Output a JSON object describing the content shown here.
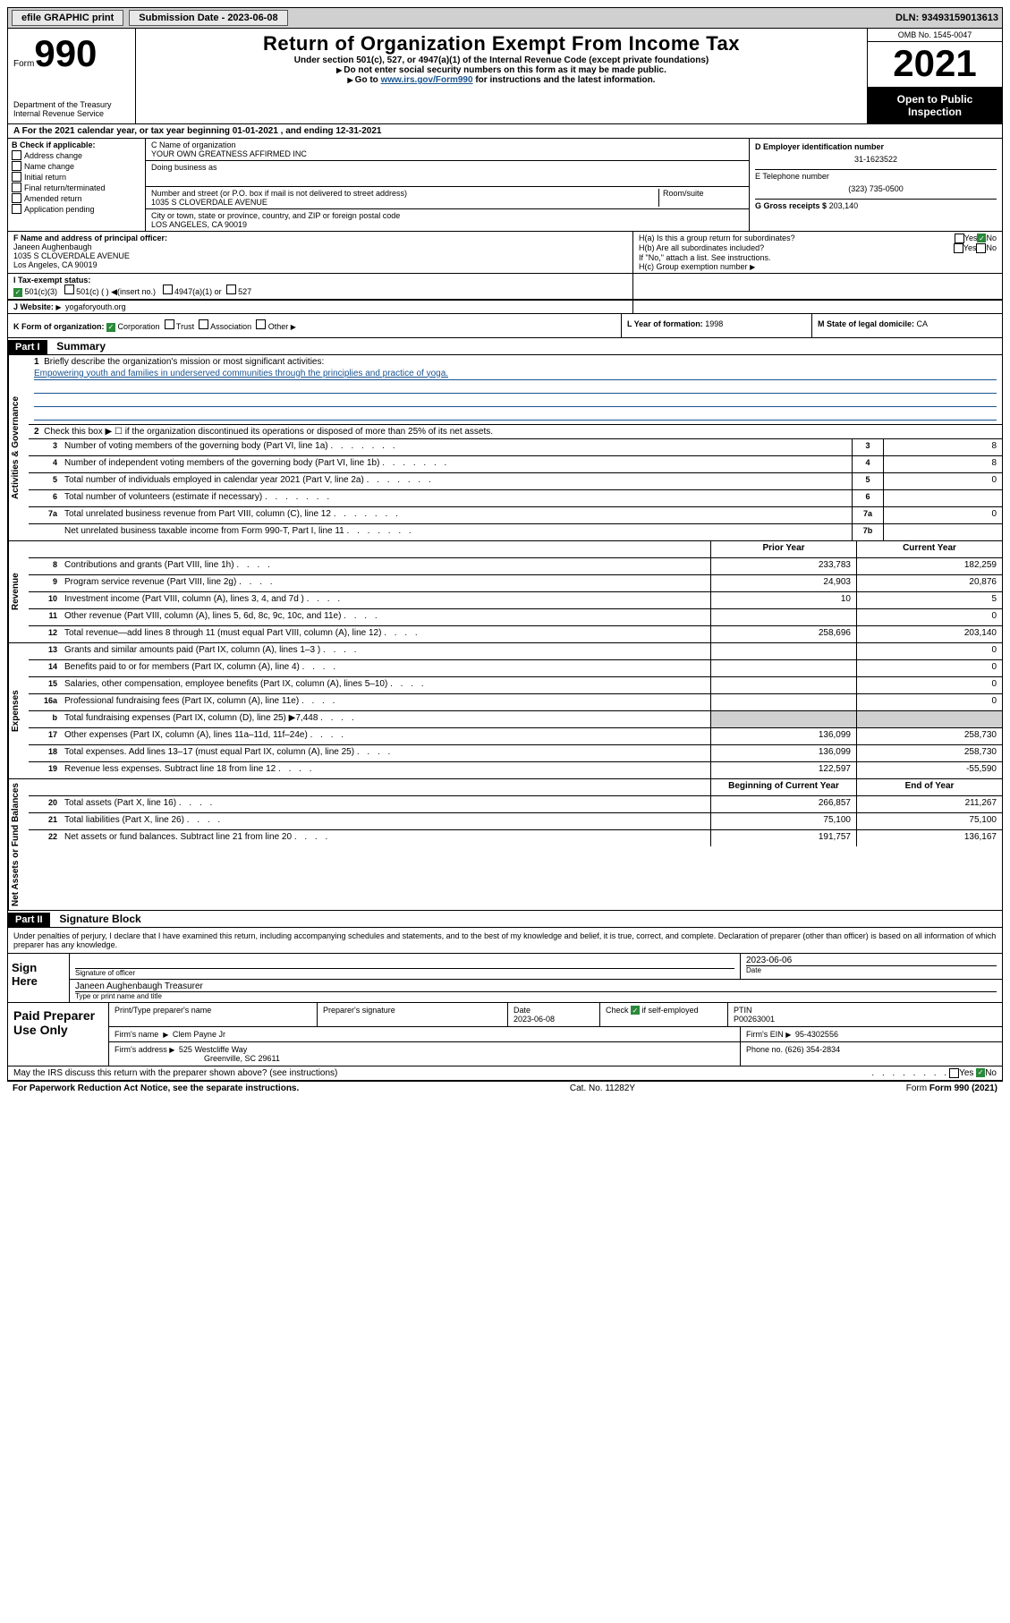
{
  "topbar": {
    "efile": "efile GRAPHIC print",
    "submission_label": "Submission Date - 2023-06-08",
    "dln": "DLN: 93493159013613"
  },
  "header": {
    "form_prefix": "Form",
    "form_number": "990",
    "dept": "Department of the Treasury",
    "irs": "Internal Revenue Service",
    "title": "Return of Organization Exempt From Income Tax",
    "sub1": "Under section 501(c), 527, or 4947(a)(1) of the Internal Revenue Code (except private foundations)",
    "sub2": "Do not enter social security numbers on this form as it may be made public.",
    "sub3_a": "Go to ",
    "sub3_link": "www.irs.gov/Form990",
    "sub3_b": " for instructions and the latest information.",
    "omb": "OMB No. 1545-0047",
    "year": "2021",
    "open": "Open to Public Inspection"
  },
  "section_a": "A  For the 2021 calendar year, or tax year beginning 01-01-2021   , and ending 12-31-2021",
  "section_b": {
    "label": "B Check if applicable:",
    "items": [
      "Address change",
      "Name change",
      "Initial return",
      "Final return/terminated",
      "Amended return",
      "Application pending"
    ]
  },
  "section_c": {
    "name_label": "C Name of organization",
    "name": "YOUR OWN GREATNESS AFFIRMED INC",
    "dba_label": "Doing business as",
    "street_label": "Number and street (or P.O. box if mail is not delivered to street address)",
    "room_label": "Room/suite",
    "street": "1035 S CLOVERDALE AVENUE",
    "city_label": "City or town, state or province, country, and ZIP or foreign postal code",
    "city": "LOS ANGELES, CA  90019"
  },
  "section_d": {
    "ein_label": "D Employer identification number",
    "ein": "31-1623522",
    "phone_label": "E Telephone number",
    "phone": "(323) 735-0500",
    "gross_label": "G Gross receipts $",
    "gross": "203,140"
  },
  "section_f": {
    "label": "F  Name and address of principal officer:",
    "name": "Janeen Aughenbaugh",
    "street": "1035 S CLOVERDALE AVENUE",
    "city": "Los Angeles, CA  90019"
  },
  "section_h": {
    "ha_label": "H(a)  Is this a group return for subordinates?",
    "hb_label": "H(b)  Are all subordinates included?",
    "hb_note": "If \"No,\" attach a list. See instructions.",
    "hc_label": "H(c)  Group exemption number",
    "yes": "Yes",
    "no": "No"
  },
  "section_i": {
    "label": "I    Tax-exempt status:",
    "c3": "501(c)(3)",
    "c": "501(c) (  )",
    "insert": "(insert no.)",
    "a1": "4947(a)(1) or",
    "s527": "527"
  },
  "section_j": {
    "label": "J   Website:",
    "value": "yogaforyouth.org"
  },
  "section_k": {
    "label": "K Form of organization:",
    "corp": "Corporation",
    "trust": "Trust",
    "assoc": "Association",
    "other": "Other"
  },
  "section_l": {
    "label": "L Year of formation:",
    "value": "1998"
  },
  "section_m": {
    "label": "M State of legal domicile:",
    "value": "CA"
  },
  "part1": {
    "bar": "Part I",
    "title": "Summary",
    "line1_label": "Briefly describe the organization's mission or most significant activities:",
    "line1_text": "Empowering youth and families in underserved communities through the principlies and practice of yoga.",
    "line2": "Check this box ▶ ☐ if the organization discontinued its operations or disposed of more than 25% of its net assets.",
    "rows": [
      {
        "n": "3",
        "t": "Number of voting members of the governing body (Part VI, line 1a)",
        "box": "3",
        "v": "8"
      },
      {
        "n": "4",
        "t": "Number of independent voting members of the governing body (Part VI, line 1b)",
        "box": "4",
        "v": "8"
      },
      {
        "n": "5",
        "t": "Total number of individuals employed in calendar year 2021 (Part V, line 2a)",
        "box": "5",
        "v": "0"
      },
      {
        "n": "6",
        "t": "Total number of volunteers (estimate if necessary)",
        "box": "6",
        "v": ""
      },
      {
        "n": "7a",
        "t": "Total unrelated business revenue from Part VIII, column (C), line 12",
        "box": "7a",
        "v": "0"
      },
      {
        "n": "",
        "t": "Net unrelated business taxable income from Form 990-T, Part I, line 11",
        "box": "7b",
        "v": ""
      }
    ],
    "col_prior": "Prior Year",
    "col_current": "Current Year",
    "rev_rows": [
      {
        "n": "8",
        "t": "Contributions and grants (Part VIII, line 1h)",
        "p": "233,783",
        "c": "182,259"
      },
      {
        "n": "9",
        "t": "Program service revenue (Part VIII, line 2g)",
        "p": "24,903",
        "c": "20,876"
      },
      {
        "n": "10",
        "t": "Investment income (Part VIII, column (A), lines 3, 4, and 7d )",
        "p": "10",
        "c": "5"
      },
      {
        "n": "11",
        "t": "Other revenue (Part VIII, column (A), lines 5, 6d, 8c, 9c, 10c, and 11e)",
        "p": "",
        "c": "0"
      },
      {
        "n": "12",
        "t": "Total revenue—add lines 8 through 11 (must equal Part VIII, column (A), line 12)",
        "p": "258,696",
        "c": "203,140"
      }
    ],
    "exp_rows": [
      {
        "n": "13",
        "t": "Grants and similar amounts paid (Part IX, column (A), lines 1–3 )",
        "p": "",
        "c": "0"
      },
      {
        "n": "14",
        "t": "Benefits paid to or for members (Part IX, column (A), line 4)",
        "p": "",
        "c": "0"
      },
      {
        "n": "15",
        "t": "Salaries, other compensation, employee benefits (Part IX, column (A), lines 5–10)",
        "p": "",
        "c": "0"
      },
      {
        "n": "16a",
        "t": "Professional fundraising fees (Part IX, column (A), line 11e)",
        "p": "",
        "c": "0"
      },
      {
        "n": "b",
        "t": "Total fundraising expenses (Part IX, column (D), line 25) ▶7,448",
        "p": "grey",
        "c": "grey"
      },
      {
        "n": "17",
        "t": "Other expenses (Part IX, column (A), lines 11a–11d, 11f–24e)",
        "p": "136,099",
        "c": "258,730"
      },
      {
        "n": "18",
        "t": "Total expenses. Add lines 13–17 (must equal Part IX, column (A), line 25)",
        "p": "136,099",
        "c": "258,730"
      },
      {
        "n": "19",
        "t": "Revenue less expenses. Subtract line 18 from line 12",
        "p": "122,597",
        "c": "-55,590"
      }
    ],
    "col_begin": "Beginning of Current Year",
    "col_end": "End of Year",
    "na_rows": [
      {
        "n": "20",
        "t": "Total assets (Part X, line 16)",
        "p": "266,857",
        "c": "211,267"
      },
      {
        "n": "21",
        "t": "Total liabilities (Part X, line 26)",
        "p": "75,100",
        "c": "75,100"
      },
      {
        "n": "22",
        "t": "Net assets or fund balances. Subtract line 21 from line 20",
        "p": "191,757",
        "c": "136,167"
      }
    ],
    "vert_ag": "Activities & Governance",
    "vert_rev": "Revenue",
    "vert_exp": "Expenses",
    "vert_na": "Net Assets or Fund Balances"
  },
  "part2": {
    "bar": "Part II",
    "title": "Signature Block",
    "declaration": "Under penalties of perjury, I declare that I have examined this return, including accompanying schedules and statements, and to the best of my knowledge and belief, it is true, correct, and complete. Declaration of preparer (other than officer) is based on all information of which preparer has any knowledge.",
    "sign_here": "Sign Here",
    "sig_officer": "Signature of officer",
    "sig_date_label": "Date",
    "sig_date": "2023-06-06",
    "sig_name": "Janeen Aughenbaugh Treasurer",
    "sig_type_label": "Type or print name and title",
    "paid_label": "Paid Preparer Use Only",
    "prep_name_label": "Print/Type preparer's name",
    "prep_sig_label": "Preparer's signature",
    "prep_date_label": "Date",
    "prep_date": "2023-06-08",
    "prep_check_label": "Check",
    "prep_self": "if self-employed",
    "ptin_label": "PTIN",
    "ptin": "P00263001",
    "firm_name_label": "Firm's name",
    "firm_name": "Clem Payne Jr",
    "firm_ein_label": "Firm's EIN",
    "firm_ein": "95-4302556",
    "firm_addr_label": "Firm's address",
    "firm_addr1": "525 Westcliffe Way",
    "firm_addr2": "Greenville, SC  29611",
    "firm_phone_label": "Phone no.",
    "firm_phone": "(626) 354-2834",
    "discuss": "May the IRS discuss this return with the preparer shown above? (see instructions)"
  },
  "footer": {
    "paperwork": "For Paperwork Reduction Act Notice, see the separate instructions.",
    "cat": "Cat. No. 11282Y",
    "form": "Form 990 (2021)"
  }
}
